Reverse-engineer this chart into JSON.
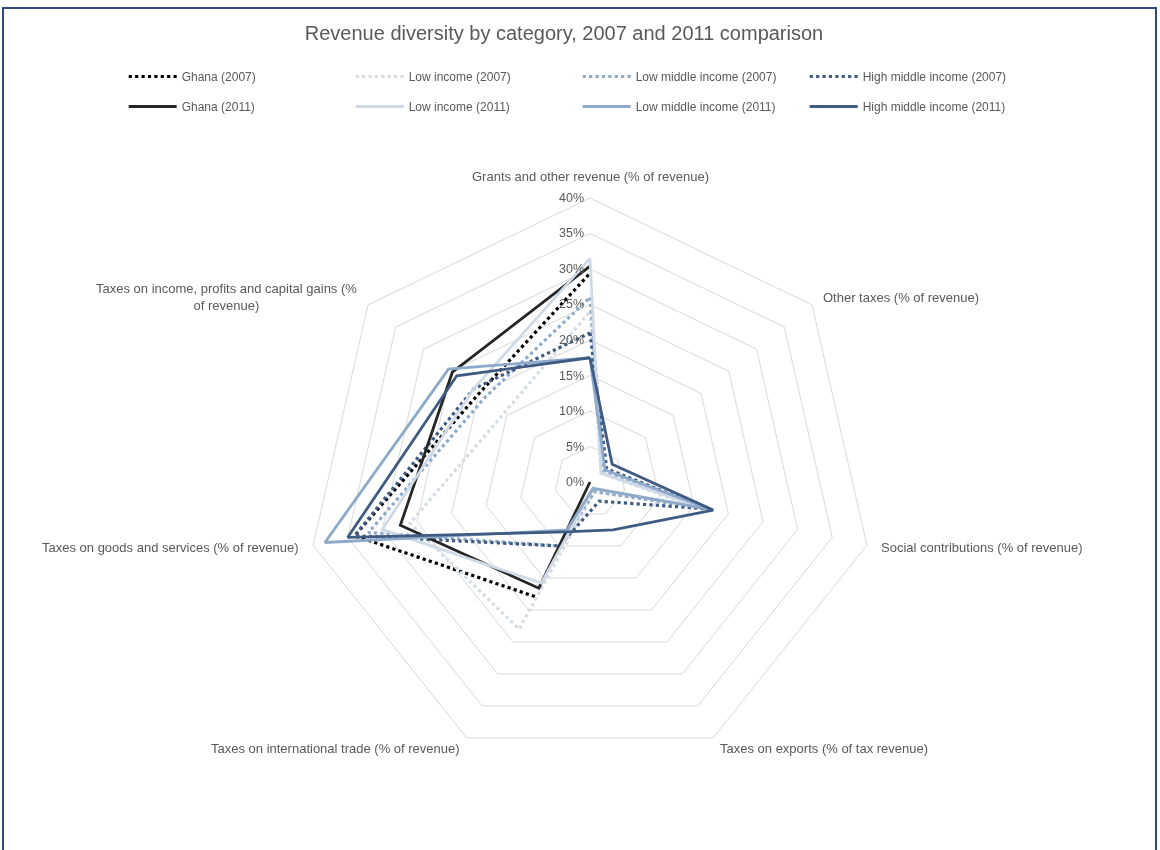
{
  "chart_data": {
    "type": "radar",
    "title": "Revenue diversity by category, 2007 and 2011 comparison",
    "categories": [
      "Grants and other revenue (% of revenue)",
      "Other taxes (% of revenue)",
      "Social contributions (% of revenue)",
      "Taxes on exports (% of tax revenue)",
      "Taxes on international trade (% of revenue)",
      "Taxes on goods and services (% of revenue)",
      "Taxes on income, profits and capital gains (% of revenue)"
    ],
    "series": [
      {
        "name": "Ghana (2007)",
        "color": "#000000",
        "line_style": "dotted",
        "values": [
          29.4,
          null,
          null,
          null,
          17.9,
          34,
          20
        ]
      },
      {
        "name": "Low income (2007)",
        "color": "#d6dce4",
        "line_style": "dotted",
        "values": [
          24,
          2,
          14,
          1.5,
          23,
          26,
          15.5
        ]
      },
      {
        "name": "Low middle income (2007)",
        "color": "#8eaacb",
        "line_style": "dotted",
        "values": [
          26,
          2.5,
          17,
          1.5,
          10,
          32,
          19
        ]
      },
      {
        "name": "High middle income (2007)",
        "color": "#3f5b84",
        "line_style": "dotted",
        "values": [
          21,
          3,
          17,
          3,
          10,
          34,
          21
        ]
      },
      {
        "name": "Ghana (2011)",
        "color": "#262626",
        "line_style": "solid",
        "values": [
          30.4,
          null,
          null,
          0,
          16.6,
          27.4,
          24.8
        ]
      },
      {
        "name": "Low income (2011)",
        "color": "#d0dae6",
        "line_style": "solid",
        "values": [
          31.5,
          2,
          16,
          1,
          15.8,
          30,
          21
        ]
      },
      {
        "name": "Low middle income (2011)",
        "color": "#8eaacb",
        "line_style": "solid",
        "values": [
          17.5,
          2.7,
          17.5,
          1,
          7.5,
          38.3,
          25.5
        ]
      },
      {
        "name": "High middle income (2011)",
        "color": "#3f5b84",
        "line_style": "solid",
        "values": [
          17.5,
          4,
          17.8,
          7.5,
          7.8,
          35,
          24
        ]
      }
    ],
    "ylim": [
      0,
      40
    ],
    "yticks": [
      {
        "value": 0,
        "label": "0%"
      },
      {
        "value": 5,
        "label": "5%"
      },
      {
        "value": 10,
        "label": "10%"
      },
      {
        "value": 15,
        "label": "15%"
      },
      {
        "value": 20,
        "label": "20%"
      },
      {
        "value": 25,
        "label": "25%"
      },
      {
        "value": 30,
        "label": "30%"
      },
      {
        "value": 35,
        "label": "35%"
      },
      {
        "value": 40,
        "label": "40%"
      }
    ],
    "grid": true,
    "legend": "top"
  }
}
